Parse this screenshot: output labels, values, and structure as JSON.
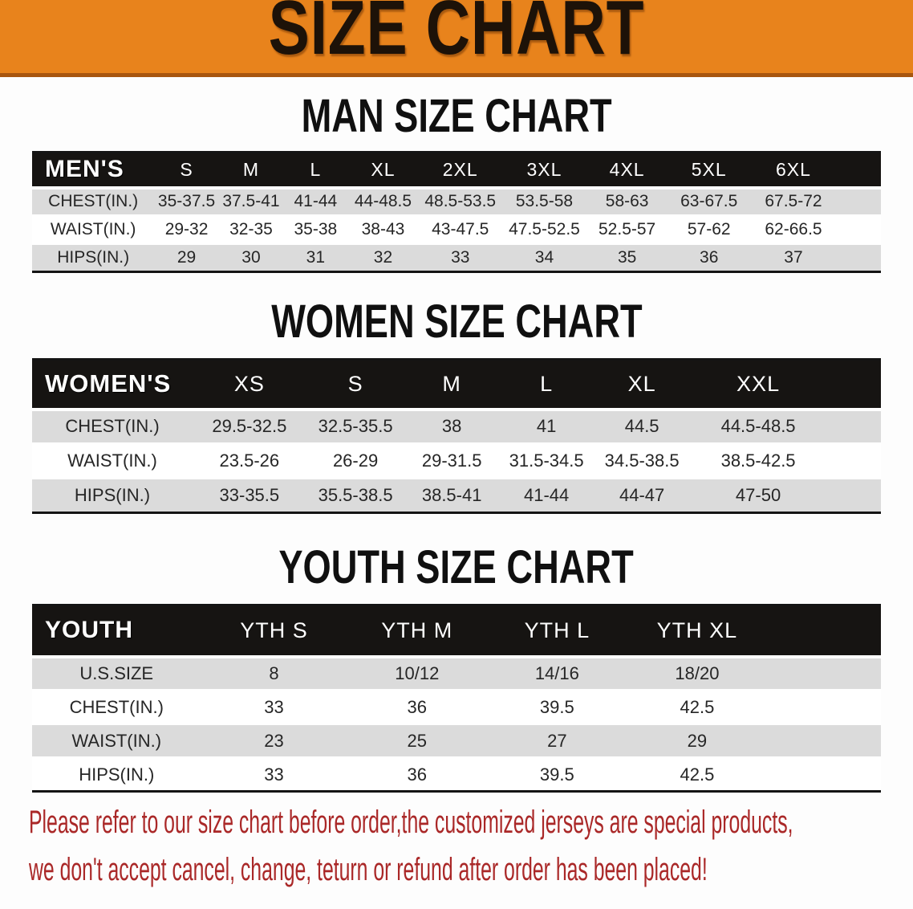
{
  "banner": {
    "title": "SIZE CHART",
    "bg_color": "#E8831C",
    "border_color": "#A8560F"
  },
  "sections": [
    {
      "heading": "MAN SIZE CHART",
      "table": {
        "corner": "MEN'S",
        "columns": [
          "S",
          "M",
          "L",
          "XL",
          "2XL",
          "3XL",
          "4XL",
          "5XL",
          "6XL"
        ],
        "rows": [
          {
            "label": "CHEST(IN.)",
            "values": [
              "35-37.5",
              "37.5-41",
              "41-44",
              "44-48.5",
              "48.5-53.5",
              "53.5-58",
              "58-63",
              "63-67.5",
              "67.5-72"
            ]
          },
          {
            "label": "WAIST(IN.)",
            "values": [
              "29-32",
              "32-35",
              "35-38",
              "38-43",
              "43-47.5",
              "47.5-52.5",
              "52.5-57",
              "57-62",
              "62-66.5"
            ]
          },
          {
            "label": "HIPS(IN.)",
            "values": [
              "29",
              "30",
              "31",
              "32",
              "33",
              "34",
              "35",
              "36",
              "37"
            ]
          }
        ]
      }
    },
    {
      "heading": "WOMEN SIZE CHART",
      "table": {
        "corner": "WOMEN'S",
        "columns": [
          "XS",
          "S",
          "M",
          "L",
          "XL",
          "XXL"
        ],
        "rows": [
          {
            "label": "CHEST(IN.)",
            "values": [
              "29.5-32.5",
              "32.5-35.5",
              "38",
              "41",
              "44.5",
              "44.5-48.5"
            ]
          },
          {
            "label": "WAIST(IN.)",
            "values": [
              "23.5-26",
              "26-29",
              "29-31.5",
              "31.5-34.5",
              "34.5-38.5",
              "38.5-42.5"
            ]
          },
          {
            "label": "HIPS(IN.)",
            "values": [
              "33-35.5",
              "35.5-38.5",
              "38.5-41",
              "41-44",
              "44-47",
              "47-50"
            ]
          }
        ]
      }
    },
    {
      "heading": "YOUTH SIZE CHART",
      "table": {
        "corner": "YOUTH",
        "columns": [
          "YTH S",
          "YTH M",
          "YTH L",
          "YTH XL"
        ],
        "rows": [
          {
            "label": "U.S.SIZE",
            "values": [
              "8",
              "10/12",
              "14/16",
              "18/20"
            ]
          },
          {
            "label": "CHEST(IN.)",
            "values": [
              "33",
              "36",
              "39.5",
              "42.5"
            ]
          },
          {
            "label": "WAIST(IN.)",
            "values": [
              "23",
              "25",
              "27",
              "29"
            ]
          },
          {
            "label": "HIPS(IN.)",
            "values": [
              "33",
              "36",
              "39.5",
              "42.5"
            ]
          }
        ]
      }
    }
  ],
  "footer": {
    "line1": "Please refer to our size chart before order,the customized jerseys are special products,",
    "line2": "we don't accept cancel, change, teturn or refund after order has been placed!",
    "text_color": "#AA2828"
  }
}
